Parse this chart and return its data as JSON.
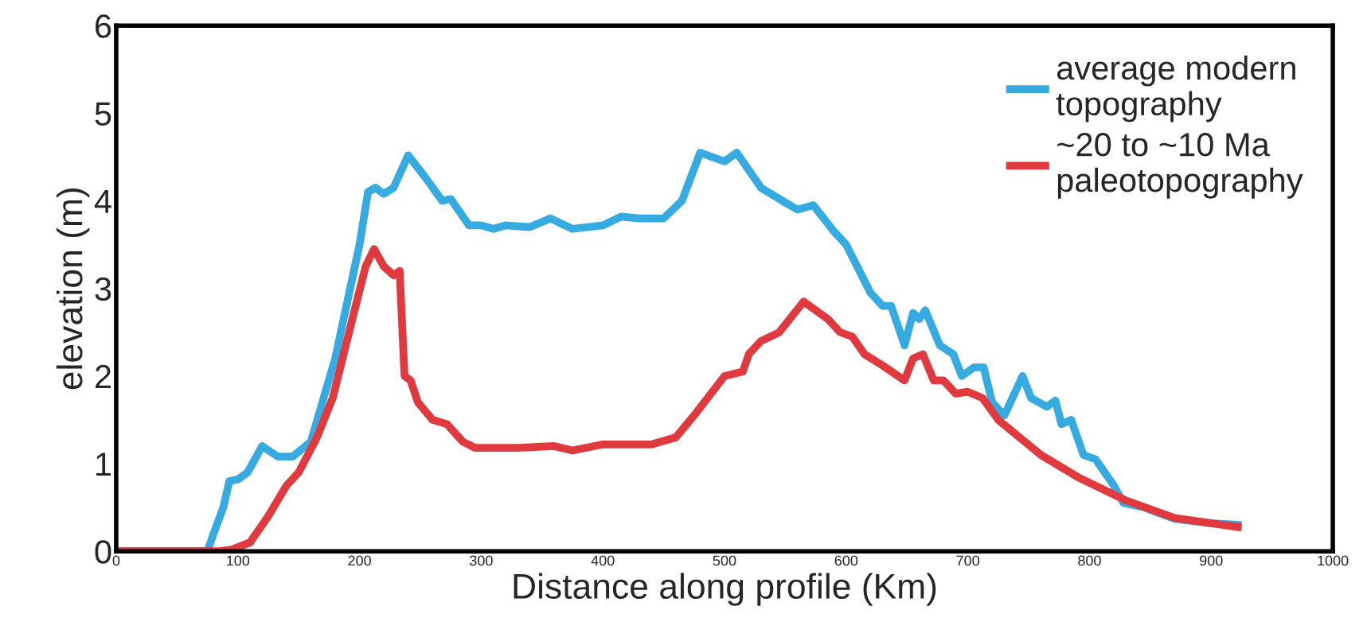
{
  "chart_data": {
    "type": "line",
    "xlabel": "Distance along profile (Km)",
    "ylabel": "elevation (m)",
    "xlim": [
      0,
      1000
    ],
    "xticks": [
      0,
      100,
      200,
      300,
      400,
      500,
      600,
      700,
      800,
      900,
      1000
    ],
    "ylim": [
      0,
      6
    ],
    "yticks": [
      0,
      1,
      2,
      3,
      4,
      5,
      6
    ],
    "grid": false,
    "legend": "top right",
    "series": [
      {
        "name": "average modern\ntopography",
        "color": "#35abe2",
        "x": [
          0,
          75,
          80,
          88,
          93,
          100,
          108,
          120,
          133,
          145,
          160,
          180,
          200,
          207,
          213,
          220,
          228,
          240,
          255,
          268,
          275,
          290,
          300,
          310,
          320,
          340,
          357,
          375,
          400,
          415,
          430,
          450,
          465,
          480,
          500,
          510,
          530,
          550,
          560,
          573,
          590,
          600,
          620,
          630,
          637,
          648,
          655,
          660,
          665,
          677,
          688,
          695,
          705,
          713,
          720,
          730,
          745,
          752,
          765,
          772,
          777,
          785,
          795,
          805,
          820,
          828,
          845,
          870,
          900,
          925
        ],
        "values": [
          0,
          0,
          0.2,
          0.5,
          0.8,
          0.82,
          0.9,
          1.2,
          1.08,
          1.08,
          1.25,
          2.2,
          3.5,
          4.1,
          4.15,
          4.08,
          4.15,
          4.52,
          4.25,
          4.0,
          4.02,
          3.72,
          3.72,
          3.68,
          3.72,
          3.7,
          3.8,
          3.68,
          3.72,
          3.82,
          3.8,
          3.8,
          4.0,
          4.55,
          4.45,
          4.55,
          4.15,
          3.98,
          3.9,
          3.95,
          3.65,
          3.5,
          2.95,
          2.8,
          2.8,
          2.35,
          2.72,
          2.65,
          2.75,
          2.35,
          2.25,
          2.0,
          2.1,
          2.1,
          1.7,
          1.55,
          2.0,
          1.75,
          1.65,
          1.72,
          1.45,
          1.5,
          1.1,
          1.05,
          0.75,
          0.55,
          0.5,
          0.37,
          0.32,
          0.3
        ]
      },
      {
        "name": "~20 to ~10 Ma\npaleotopography",
        "color": "#e03a3e",
        "x": [
          0,
          85,
          95,
          110,
          125,
          140,
          150,
          165,
          178,
          195,
          205,
          212,
          220,
          228,
          233,
          237,
          242,
          248,
          260,
          272,
          285,
          295,
          330,
          360,
          375,
          400,
          440,
          460,
          475,
          500,
          515,
          520,
          530,
          545,
          565,
          585,
          595,
          605,
          615,
          630,
          648,
          655,
          663,
          672,
          680,
          690,
          700,
          712,
          725,
          760,
          790,
          830,
          870,
          925
        ],
        "values": [
          0,
          0,
          0.02,
          0.1,
          0.4,
          0.75,
          0.9,
          1.3,
          1.75,
          2.7,
          3.25,
          3.45,
          3.25,
          3.15,
          3.2,
          2.0,
          1.95,
          1.7,
          1.5,
          1.45,
          1.25,
          1.18,
          1.18,
          1.2,
          1.15,
          1.22,
          1.22,
          1.3,
          1.55,
          2.0,
          2.05,
          2.25,
          2.4,
          2.5,
          2.85,
          2.65,
          2.5,
          2.45,
          2.25,
          2.12,
          1.95,
          2.2,
          2.25,
          1.95,
          1.95,
          1.8,
          1.82,
          1.75,
          1.5,
          1.1,
          0.85,
          0.58,
          0.38,
          0.27
        ]
      }
    ]
  }
}
